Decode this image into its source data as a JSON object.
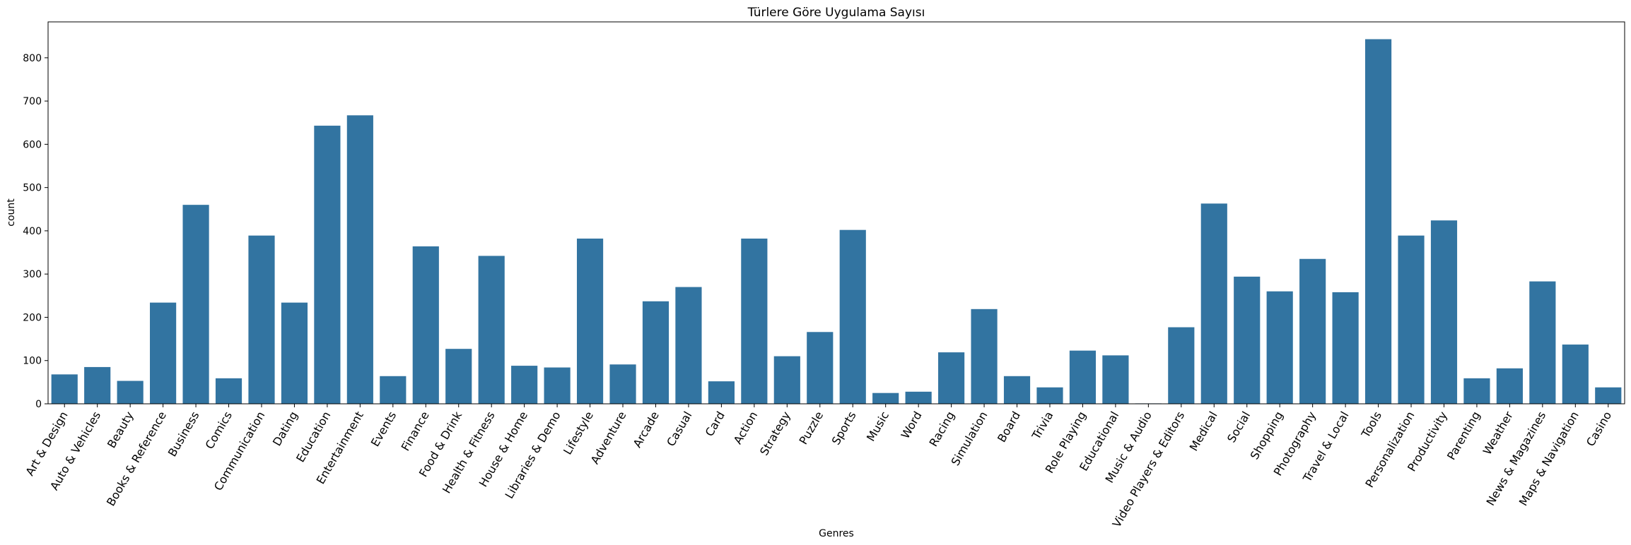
{
  "chart_data": {
    "type": "bar",
    "title": "Türlere Göre Uygulama Sayısı",
    "xlabel": "Genres",
    "ylabel": "count",
    "ylim": [
      0,
      883
    ],
    "yticks": [
      0,
      100,
      200,
      300,
      400,
      500,
      600,
      700,
      800
    ],
    "grid": false,
    "legend": "none",
    "bar_color": "#3274a1",
    "categories": [
      "Art & Design",
      "Auto & Vehicles",
      "Beauty",
      "Books & Reference",
      "Business",
      "Comics",
      "Communication",
      "Dating",
      "Education",
      "Entertainment",
      "Events",
      "Finance",
      "Food & Drink",
      "Health & Fitness",
      "House & Home",
      "Libraries & Demo",
      "Lifestyle",
      "Adventure",
      "Arcade",
      "Casual",
      "Card",
      "Action",
      "Strategy",
      "Puzzle",
      "Sports",
      "Music",
      "Word",
      "Racing",
      "Simulation",
      "Board",
      "Trivia",
      "Role Playing",
      "Educational",
      "Music & Audio",
      "Video Players & Editors",
      "Medical",
      "Social",
      "Shopping",
      "Photography",
      "Travel & Local",
      "Tools",
      "Personalization",
      "Productivity",
      "Parenting",
      "Weather",
      "News & Magazines",
      "Maps & Navigation",
      "Casino"
    ],
    "values": [
      68,
      85,
      53,
      234,
      460,
      59,
      389,
      234,
      643,
      667,
      64,
      364,
      127,
      342,
      88,
      84,
      382,
      91,
      237,
      270,
      52,
      382,
      110,
      166,
      402,
      25,
      28,
      119,
      219,
      64,
      38,
      123,
      112,
      1,
      177,
      463,
      294,
      260,
      335,
      258,
      843,
      389,
      424,
      59,
      82,
      283,
      137,
      38
    ]
  }
}
